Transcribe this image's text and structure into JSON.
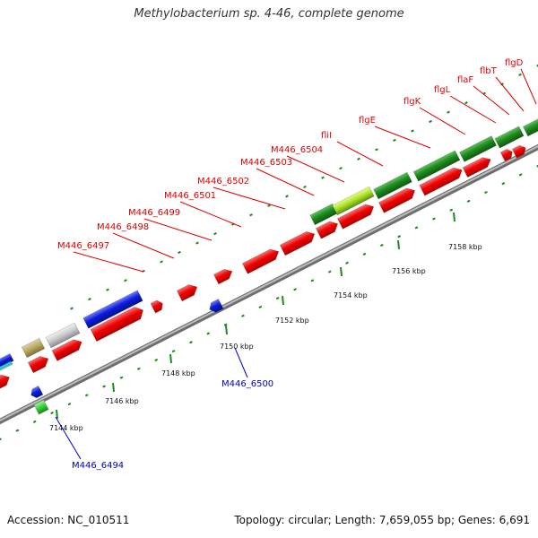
{
  "title": "Methylobacterium sp. 4-46, complete genome",
  "footer": {
    "accession": "Accession: NC_010511",
    "summary": "Topology: circular; Length: 7,659,055 bp; Genes: 6,691"
  },
  "ticks": [
    "7144 kbp",
    "7146 kbp",
    "7148 kbp",
    "7150 kbp",
    "7152 kbp",
    "7154 kbp",
    "7156 kbp",
    "7158 kbp"
  ],
  "genes_top": [
    "M446_6497",
    "M446_6498",
    "M446_6499",
    "M446_6501",
    "M446_6502",
    "M446_6503",
    "M446_6504",
    "fliI",
    "flgE",
    "flgK",
    "flgL",
    "flaF",
    "flbT",
    "flgD"
  ],
  "genes_bottom": [
    "M446_6500",
    "M446_6494"
  ],
  "colors": {
    "cds": "#ee0000",
    "flagellar": "#1f8a1f",
    "blue": "#0b1cdc",
    "olive": "#b8a860",
    "grey": "#c4c4c4",
    "lime": "#a6e026",
    "backbone": "#9a9a9a",
    "tick": "#1a8c1a"
  }
}
